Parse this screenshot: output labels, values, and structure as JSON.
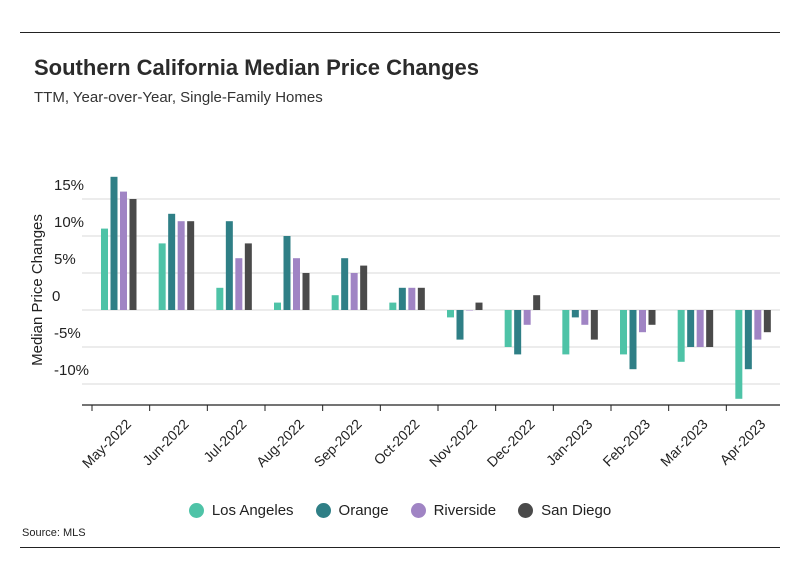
{
  "chart_data": {
    "type": "bar",
    "title": "Southern California Median Price Changes",
    "subtitle": "TTM, Year-over-Year, Single-Family Homes",
    "ylabel": "Median Price Changes",
    "xlabel": "",
    "source": "Source: MLS",
    "ylim": [
      -12.5,
      18
    ],
    "yticks": [
      15,
      10,
      5,
      0,
      -5,
      -10
    ],
    "ytick_labels": [
      "15%",
      "10%",
      "5%",
      "0",
      "-5%",
      "-10%"
    ],
    "grid": true,
    "legend_position": "bottom",
    "categories": [
      "May-2022",
      "Jun-2022",
      "Jul-2022",
      "Aug-2022",
      "Sep-2022",
      "Oct-2022",
      "Nov-2022",
      "Dec-2022",
      "Jan-2023",
      "Feb-2023",
      "Mar-2023",
      "Apr-2023"
    ],
    "series": [
      {
        "name": "Los Angeles",
        "color": "#4ec3a7",
        "values": [
          11,
          9,
          3,
          1,
          2,
          1,
          -1,
          -5,
          -6,
          -6,
          -7,
          -12
        ]
      },
      {
        "name": "Orange",
        "color": "#2f7f86",
        "values": [
          18,
          13,
          12,
          10,
          7,
          3,
          -4,
          -6,
          -1,
          -8,
          -5,
          -8
        ]
      },
      {
        "name": "Riverside",
        "color": "#a084c4",
        "values": [
          16,
          12,
          7,
          7,
          5,
          3,
          0,
          -2,
          -2,
          -3,
          -5,
          -4
        ]
      },
      {
        "name": "San Diego",
        "color": "#4a4a4a",
        "values": [
          15,
          12,
          9,
          5,
          6,
          3,
          1,
          2,
          -4,
          -2,
          -5,
          -3
        ]
      }
    ]
  }
}
